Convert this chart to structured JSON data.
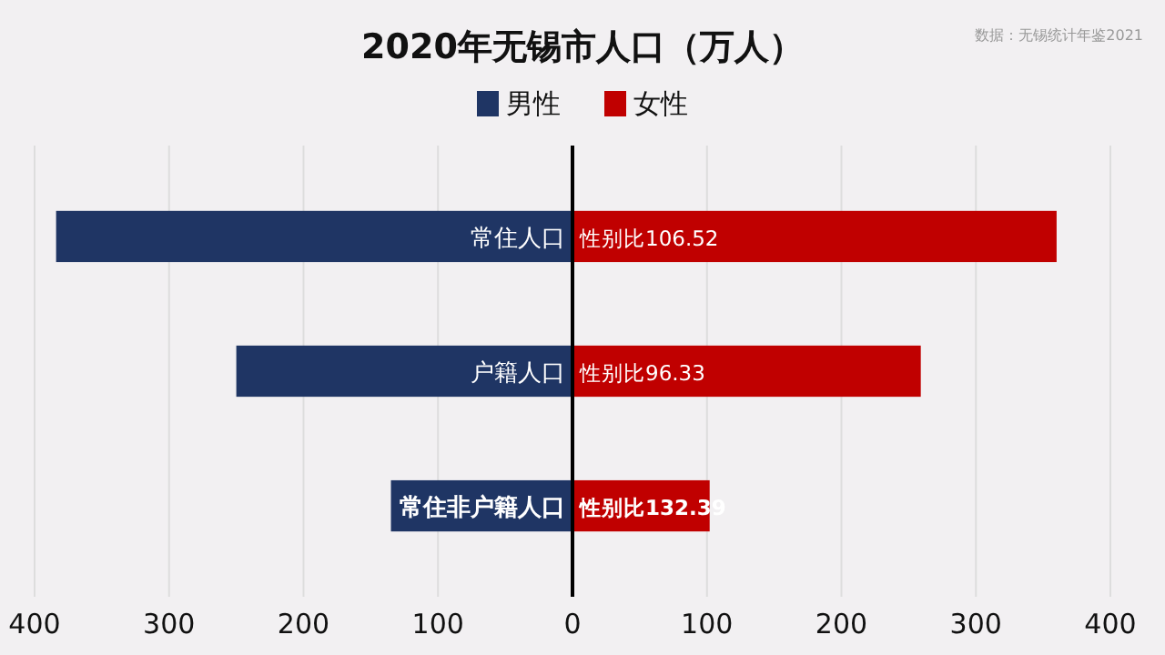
{
  "chart_data": {
    "type": "bar",
    "orientation": "horizontal",
    "stacked": true,
    "title": "2020年无锡市人口（万人）",
    "categories": [
      "常住人口",
      "户籍人口",
      "常住非户籍人口"
    ],
    "series": [
      {
        "name": "男性",
        "color": "#1f3564",
        "values": [
          -384,
          -250,
          -135
        ]
      },
      {
        "name": "女性",
        "color": "#c00000",
        "values": [
          360,
          259,
          102
        ]
      }
    ],
    "xlim": [
      -400,
      400
    ],
    "xticks": [
      {
        "value": -400,
        "label": "400"
      },
      {
        "value": -300,
        "label": "300"
      },
      {
        "value": -200,
        "label": "200"
      },
      {
        "value": -100,
        "label": "100"
      },
      0,
      100,
      200,
      300,
      400
    ],
    "grid": "x",
    "legend": "top",
    "annotations": [
      "性别比106.52",
      "性别比96.33",
      "性别比132.39",
      "数据：无锡统计年鉴2021"
    ]
  }
}
